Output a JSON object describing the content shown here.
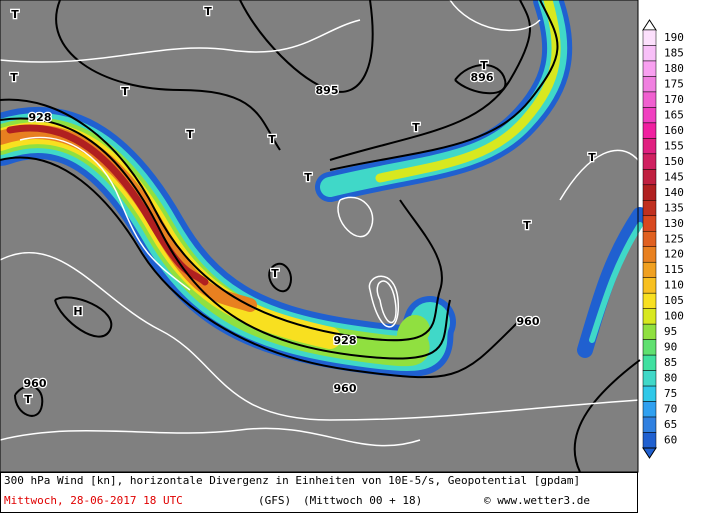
{
  "map": {
    "labels": [
      "928",
      "928",
      "960",
      "960",
      "960",
      "896",
      "895",
      "H",
      "T",
      "T",
      "T",
      "T",
      "T",
      "T",
      "T",
      "T",
      "T",
      "T",
      "T",
      "T",
      "T"
    ],
    "colorbar": {
      "levels": [
        190,
        185,
        180,
        175,
        170,
        165,
        160,
        155,
        150,
        145,
        140,
        135,
        130,
        125,
        120,
        115,
        110,
        105,
        100,
        95,
        90,
        85,
        80,
        75,
        70,
        65,
        60
      ],
      "colors": [
        "#fce0fc",
        "#f8c0f8",
        "#f8a0f0",
        "#f080e0",
        "#f060d0",
        "#f040c0",
        "#f020a0",
        "#e02080",
        "#d02060",
        "#c02040",
        "#b02020",
        "#c03020",
        "#d84820",
        "#e06020",
        "#e88020",
        "#f0a020",
        "#f8c020",
        "#f8e020",
        "#d8e820",
        "#90e040",
        "#60e070",
        "#40e0a0",
        "#40d8c8",
        "#30c8e8",
        "#30a0f0",
        "#3080e0",
        "#2060d0"
      ]
    }
  },
  "footer": {
    "description": "300 hPa Wind [kn], horizontale Divergenz in Einheiten von 10E-5/s, Geopotential [gpdam]",
    "date": "Mittwoch, 28-06-2017  18 UTC",
    "model": "(GFS)",
    "run": "(Mittwoch 00 + 18)",
    "credit": "© www.wetter3.de"
  }
}
